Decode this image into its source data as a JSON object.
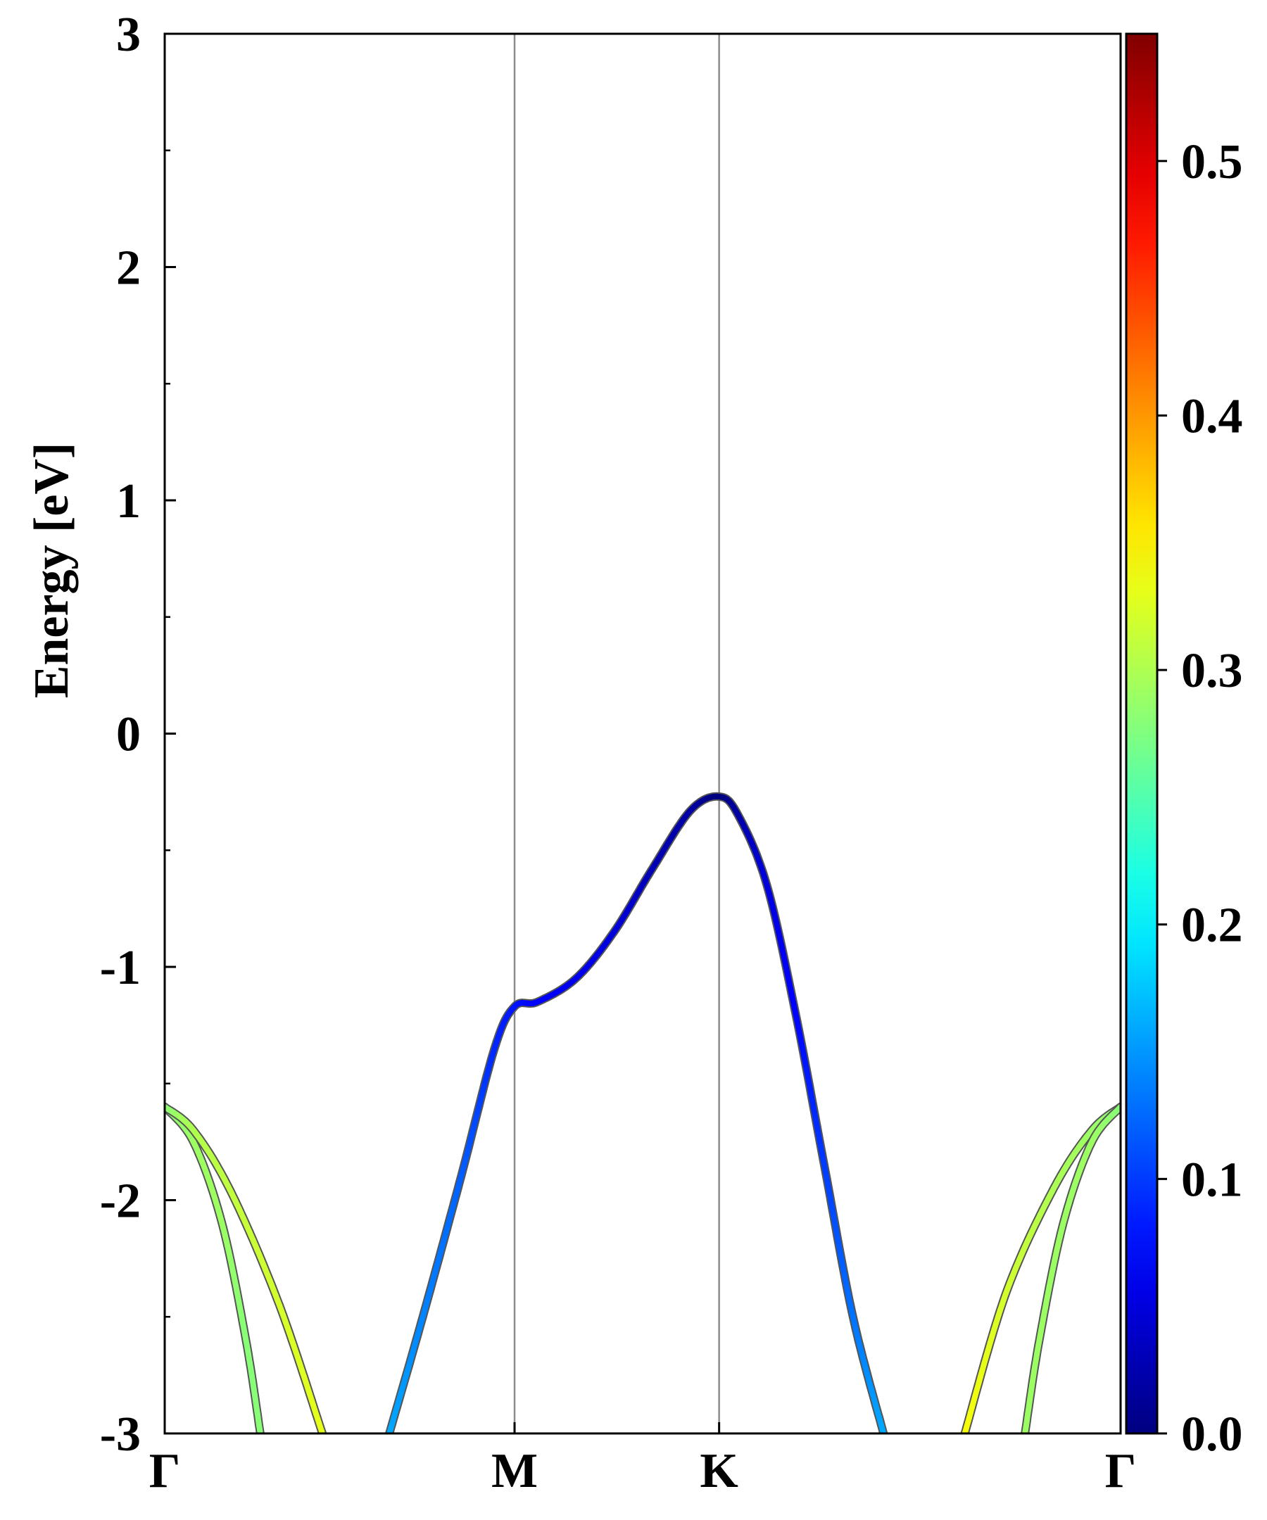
{
  "chart_data": {
    "type": "line",
    "ylabel": "Energy [eV]",
    "ylim": [
      -3,
      3
    ],
    "y_ticks": [
      "3",
      "2",
      "1",
      "0",
      "-1",
      "-2",
      "-3"
    ],
    "y_tick_values": [
      3,
      2,
      1,
      0,
      -1,
      -2,
      -3
    ],
    "x_ticks": [
      "Γ",
      "M",
      "K",
      "Γ"
    ],
    "x_tick_positions": [
      0,
      0.366,
      0.58,
      1.0
    ],
    "vertical_lines_at": [
      0.366,
      0.58
    ],
    "grid": false,
    "colorbar": {
      "colormap": "jet",
      "range": [
        0,
        0.55
      ],
      "labels": [
        "0.0",
        "0.1",
        "0.2",
        "0.3",
        "0.4",
        "0.5"
      ],
      "values": [
        0,
        0.1,
        0.2,
        0.3,
        0.4,
        0.5
      ]
    },
    "series": [
      {
        "points": [
          [
            0.0,
            -1.6,
            0.28
          ],
          [
            0.03,
            -1.75,
            0.29
          ],
          [
            0.06,
            -2.1,
            0.29
          ],
          [
            0.085,
            -2.6,
            0.28
          ],
          [
            0.1,
            -3.0,
            0.28
          ]
        ]
      },
      {
        "points": [
          [
            0.0,
            -1.6,
            0.28
          ],
          [
            0.03,
            -1.7,
            0.3
          ],
          [
            0.07,
            -1.97,
            0.31
          ],
          [
            0.12,
            -2.45,
            0.32
          ],
          [
            0.165,
            -3.0,
            0.33
          ]
        ]
      },
      {
        "points": [
          [
            0.235,
            -3.0,
            0.16
          ],
          [
            0.27,
            -2.5,
            0.14
          ],
          [
            0.31,
            -1.9,
            0.12
          ],
          [
            0.345,
            -1.35,
            0.09
          ],
          [
            0.366,
            -1.17,
            0.08
          ],
          [
            0.39,
            -1.15,
            0.07
          ],
          [
            0.43,
            -1.05,
            0.06
          ],
          [
            0.47,
            -0.85,
            0.05
          ],
          [
            0.51,
            -0.58,
            0.03
          ],
          [
            0.55,
            -0.33,
            0.02
          ],
          [
            0.58,
            -0.27,
            0.0
          ],
          [
            0.6,
            -0.35,
            0.02
          ],
          [
            0.63,
            -0.65,
            0.05
          ],
          [
            0.66,
            -1.2,
            0.07
          ],
          [
            0.69,
            -1.85,
            0.1
          ],
          [
            0.72,
            -2.5,
            0.13
          ],
          [
            0.752,
            -3.0,
            0.16
          ]
        ]
      },
      {
        "points": [
          [
            0.837,
            -3.0,
            0.34
          ],
          [
            0.88,
            -2.4,
            0.32
          ],
          [
            0.93,
            -1.95,
            0.3
          ],
          [
            0.97,
            -1.7,
            0.29
          ],
          [
            1.0,
            -1.6,
            0.28
          ]
        ]
      },
      {
        "points": [
          [
            0.9,
            -3.0,
            0.29
          ],
          [
            0.915,
            -2.6,
            0.29
          ],
          [
            0.94,
            -2.1,
            0.29
          ],
          [
            0.97,
            -1.75,
            0.29
          ],
          [
            1.0,
            -1.6,
            0.28
          ]
        ]
      }
    ]
  }
}
